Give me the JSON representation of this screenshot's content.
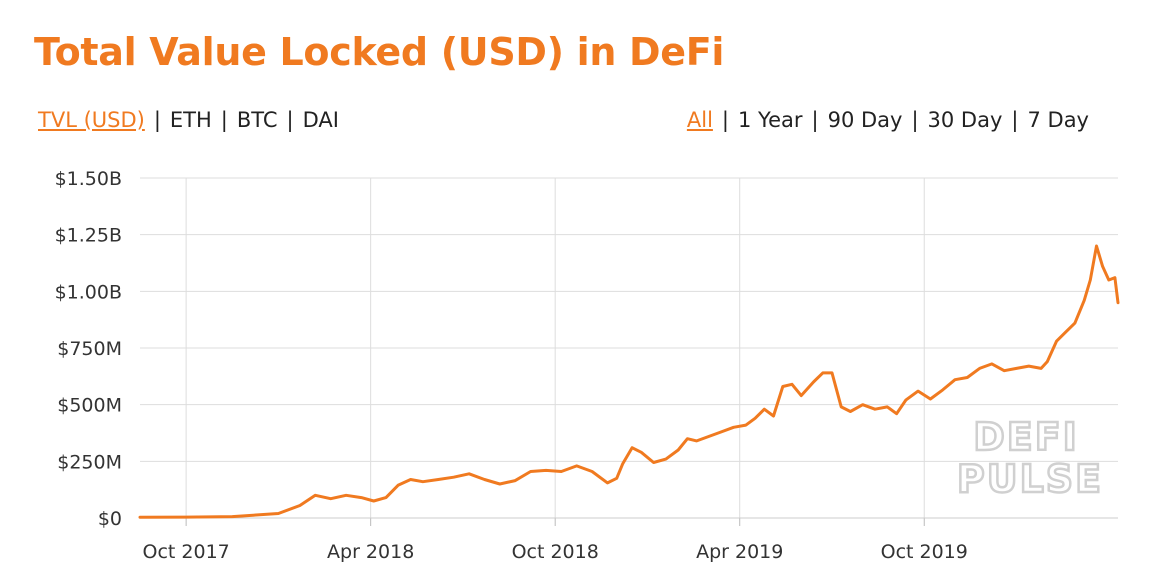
{
  "title": "Total Value Locked (USD) in DeFi",
  "metric_options": [
    {
      "label": "TVL (USD)",
      "active": true
    },
    {
      "label": "ETH",
      "active": false
    },
    {
      "label": "BTC",
      "active": false
    },
    {
      "label": "DAI",
      "active": false
    }
  ],
  "range_options": [
    {
      "label": "All",
      "active": true
    },
    {
      "label": "1 Year",
      "active": false
    },
    {
      "label": "90 Day",
      "active": false
    },
    {
      "label": "30 Day",
      "active": false
    },
    {
      "label": "7 Day",
      "active": false
    }
  ],
  "watermark": [
    "DEFI",
    "PULSE"
  ],
  "colors": {
    "accent": "#f07a20",
    "grid": "#dddddd",
    "text": "#333333"
  },
  "chart_data": {
    "type": "line",
    "title": "Total Value Locked (USD) in DeFi",
    "xlabel": "",
    "ylabel": "",
    "grid": true,
    "y_unit": "USD (millions)",
    "ylim": [
      0,
      1500
    ],
    "y_ticks": [
      {
        "value": 0,
        "label": "$0"
      },
      {
        "value": 250,
        "label": "$250M"
      },
      {
        "value": 500,
        "label": "$500M"
      },
      {
        "value": 750,
        "label": "$750M"
      },
      {
        "value": 1000,
        "label": "$1.00B"
      },
      {
        "value": 1250,
        "label": "$1.25B"
      },
      {
        "value": 1500,
        "label": "$1.50B"
      }
    ],
    "x_unit": "months since Jan 2017",
    "xlim": [
      7.5,
      39.3
    ],
    "x_ticks": [
      {
        "value": 9,
        "label": "Oct 2017"
      },
      {
        "value": 15,
        "label": "Apr 2018"
      },
      {
        "value": 21,
        "label": "Oct 2018"
      },
      {
        "value": 27,
        "label": "Apr 2019"
      },
      {
        "value": 33,
        "label": "Oct 2019"
      }
    ],
    "series": [
      {
        "name": "TVL (USD)",
        "x": [
          7.5,
          9.0,
          10.5,
          12.0,
          12.7,
          13.2,
          13.7,
          14.2,
          14.7,
          15.1,
          15.5,
          15.9,
          16.3,
          16.7,
          17.2,
          17.7,
          18.2,
          18.7,
          19.2,
          19.7,
          20.2,
          20.7,
          21.2,
          21.7,
          22.2,
          22.7,
          23.0,
          23.2,
          23.5,
          23.8,
          24.2,
          24.6,
          25.0,
          25.3,
          25.6,
          26.0,
          26.4,
          26.8,
          27.2,
          27.5,
          27.8,
          28.1,
          28.4,
          28.7,
          29.0,
          29.4,
          29.7,
          30.0,
          30.3,
          30.6,
          31.0,
          31.4,
          31.8,
          32.1,
          32.4,
          32.8,
          33.2,
          33.6,
          34.0,
          34.4,
          34.8,
          35.2,
          35.6,
          36.0,
          36.4,
          36.8,
          37.0,
          37.3,
          37.6,
          37.9,
          38.2,
          38.4,
          38.6,
          38.8,
          39.0,
          39.2,
          39.3
        ],
        "y": [
          3,
          4,
          6,
          20,
          55,
          100,
          85,
          100,
          90,
          75,
          90,
          145,
          170,
          160,
          170,
          180,
          195,
          170,
          150,
          165,
          205,
          210,
          205,
          230,
          205,
          155,
          175,
          240,
          310,
          290,
          245,
          260,
          300,
          350,
          340,
          360,
          380,
          400,
          410,
          440,
          480,
          450,
          580,
          590,
          540,
          600,
          640,
          640,
          490,
          470,
          500,
          480,
          490,
          460,
          520,
          560,
          525,
          565,
          610,
          620,
          660,
          680,
          650,
          660,
          670,
          660,
          690,
          780,
          820,
          860,
          960,
          1050,
          1200,
          1110,
          1050,
          1060,
          950
        ]
      }
    ]
  }
}
